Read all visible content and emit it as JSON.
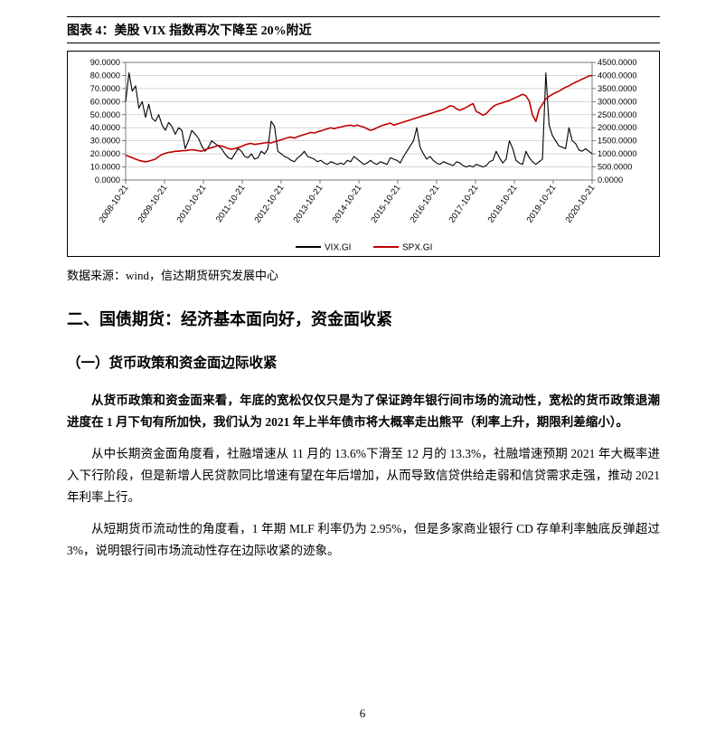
{
  "chart_caption": "图表 4：美股 VIX 指数再次下降至 20%附近",
  "source_text": "数据来源：wind，信达期货研究发展中心",
  "section_title": "二、国债期货：经济基本面向好，资金面收紧",
  "subheading": "（一）货币政策和资金面边际收紧",
  "para1": "从货币政策和资金面来看，年底的宽松仅仅只是为了保证跨年银行间市场的流动性，宽松的货币政策退潮进度在 1 月下旬有所加快，我们认为 2021 年上半年债市将大概率走出熊平（利率上升，期限利差缩小）。",
  "para2": "从中长期资金面角度看，社融增速从 11 月的 13.6%下滑至 12 月的 13.3%，社融增速预期 2021 年大概率进入下行阶段，但是新增人民贷款同比增速有望在年后增加，从而导致信贷供给走弱和信贷需求走强，推动 2021 年利率上行。",
  "para3": "从短期货币流动性的角度看，1 年期 MLF 利率仍为 2.95%，但是多家商业银行 CD 存单利率触底反弹超过 3%，说明银行间市场流动性存在边际收紧的迹象。",
  "page_number": "6",
  "chart": {
    "type": "dual-axis-line",
    "left_axis": {
      "min": 0,
      "max": 90,
      "step": 10,
      "ticks": [
        "0.0000",
        "10.0000",
        "20.0000",
        "30.0000",
        "40.0000",
        "50.0000",
        "60.0000",
        "70.0000",
        "80.0000",
        "90.0000"
      ]
    },
    "right_axis": {
      "min": 0,
      "max": 4500,
      "step": 500,
      "ticks": [
        "0.0000",
        "500.0000",
        "1000.0000",
        "1500.0000",
        "2000.0000",
        "2500.0000",
        "3000.0000",
        "3500.0000",
        "4000.0000",
        "4500.0000"
      ]
    },
    "x_labels": [
      "2008-10-21",
      "2009-10-21",
      "2010-10-21",
      "2011-10-21",
      "2012-10-21",
      "2013-10-21",
      "2014-10-21",
      "2015-10-21",
      "2016-10-21",
      "2017-10-21",
      "2018-10-21",
      "2019-10-21",
      "2020-10-21"
    ],
    "series": [
      {
        "name": "VIX.GI",
        "color": "#000000",
        "axis": "left",
        "width": 1.1,
        "data": [
          60,
          82,
          68,
          72,
          55,
          60,
          48,
          58,
          47,
          45,
          50,
          42,
          38,
          44,
          41,
          35,
          40,
          38,
          24,
          30,
          38,
          35,
          32,
          26,
          22,
          25,
          30,
          28,
          26,
          24,
          20,
          17,
          16,
          20,
          24,
          22,
          18,
          17,
          20,
          16,
          17,
          22,
          20,
          24,
          45,
          41,
          22,
          20,
          18,
          17,
          15,
          14,
          17,
          19,
          22,
          18,
          17,
          16,
          14,
          15,
          13,
          12,
          14,
          13,
          12,
          13,
          12,
          15,
          14,
          18,
          16,
          14,
          12,
          13,
          15,
          13,
          12,
          14,
          13,
          12,
          17,
          16,
          15,
          13,
          18,
          22,
          26,
          30,
          40,
          25,
          20,
          16,
          18,
          15,
          13,
          12,
          14,
          13,
          12,
          11,
          14,
          13,
          11,
          10,
          11,
          10,
          12,
          11,
          10,
          11,
          14,
          15,
          22,
          17,
          13,
          16,
          30,
          24,
          15,
          13,
          12,
          22,
          17,
          14,
          12,
          14,
          16,
          82,
          42,
          34,
          30,
          26,
          25,
          24,
          40,
          30,
          28,
          23,
          22,
          24,
          22,
          20
        ]
      },
      {
        "name": "SPX.GI",
        "color": "#c00000",
        "axis": "right",
        "width": 1.6,
        "data": [
          950,
          900,
          850,
          800,
          750,
          720,
          700,
          720,
          760,
          800,
          900,
          980,
          1020,
          1060,
          1070,
          1100,
          1100,
          1120,
          1120,
          1140,
          1160,
          1140,
          1120,
          1100,
          1160,
          1200,
          1240,
          1280,
          1320,
          1300,
          1260,
          1200,
          1180,
          1200,
          1240,
          1280,
          1340,
          1380,
          1400,
          1360,
          1380,
          1400,
          1420,
          1440,
          1420,
          1460,
          1500,
          1540,
          1580,
          1620,
          1640,
          1600,
          1660,
          1700,
          1740,
          1780,
          1820,
          1800,
          1840,
          1880,
          1920,
          1960,
          2000,
          1960,
          2000,
          2020,
          2060,
          2080,
          2100,
          2060,
          2100,
          2060,
          2020,
          1960,
          1900,
          1940,
          2000,
          2060,
          2100,
          2140,
          2180,
          2100,
          2140,
          2180,
          2220,
          2260,
          2300,
          2340,
          2380,
          2420,
          2460,
          2500,
          2540,
          2580,
          2620,
          2660,
          2700,
          2760,
          2840,
          2820,
          2720,
          2670,
          2720,
          2780,
          2860,
          2920,
          2620,
          2560,
          2480,
          2540,
          2680,
          2800,
          2880,
          2920,
          2960,
          3000,
          3040,
          3100,
          3160,
          3220,
          3280,
          3220,
          3020,
          2480,
          2240,
          2700,
          2900,
          3100,
          3200,
          3280,
          3350,
          3400,
          3480,
          3550,
          3600,
          3680,
          3740,
          3800,
          3860,
          3920,
          3980,
          4000
        ]
      }
    ],
    "legend": {
      "items": [
        "VIX.GI",
        "SPX.GI"
      ]
    },
    "background_color": "#ffffff",
    "grid_color": "#bfbfbf",
    "tick_color": "#595959",
    "title_fontsize": 14,
    "label_fontsize": 9.2
  }
}
